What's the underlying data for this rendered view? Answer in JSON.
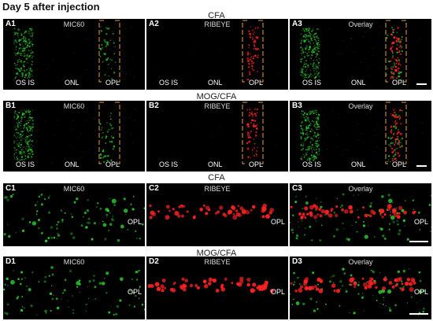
{
  "title": "Day 5 after injection",
  "groups": [
    {
      "label": "CFA"
    },
    {
      "label": "MOG/CFA"
    },
    {
      "label": "CFA"
    },
    {
      "label": "MOG/CFA"
    }
  ],
  "rows": [
    {
      "panels": [
        {
          "id": "A1",
          "channel": "MIC60"
        },
        {
          "id": "A2",
          "channel": "RIBEYE"
        },
        {
          "id": "A3",
          "channel": "Overlay"
        }
      ]
    },
    {
      "panels": [
        {
          "id": "B1",
          "channel": "MIC60"
        },
        {
          "id": "B2",
          "channel": "RIBEYE"
        },
        {
          "id": "B3",
          "channel": "Overlay"
        }
      ]
    },
    {
      "panels": [
        {
          "id": "C1",
          "channel": "MIC60"
        },
        {
          "id": "C2",
          "channel": "RIBEYE"
        },
        {
          "id": "C3",
          "channel": "Overlay"
        }
      ]
    },
    {
      "panels": [
        {
          "id": "D1",
          "channel": "MIC60"
        },
        {
          "id": "D2",
          "channel": "RIBEYE"
        },
        {
          "id": "D3",
          "channel": "Overlay"
        }
      ]
    }
  ],
  "layer_labels": {
    "os_is": "OS IS",
    "onl": "ONL",
    "opl": "OPL"
  },
  "colors": {
    "mic60": "#33dd33",
    "ribeye": "#ff2222",
    "box": "#e8a040",
    "background": "#000000"
  }
}
